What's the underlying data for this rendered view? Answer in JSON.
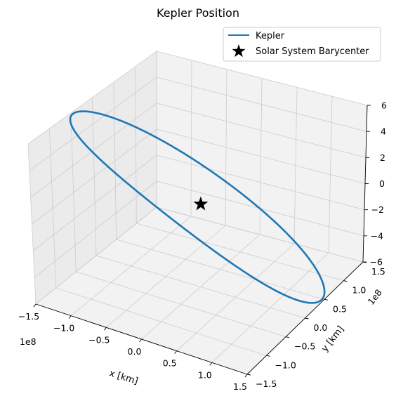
{
  "chart_data": {
    "type": "line",
    "projection": "3d",
    "title": "Kepler Position",
    "xlabel": "x [km]",
    "ylabel": "y [km]",
    "zlabel": "",
    "x_offset_label": "1e8",
    "y_offset_label": "1e8",
    "x_ticks": [
      "−1.5",
      "−1.0",
      "−0.5",
      "0.0",
      "0.5",
      "1.0",
      "1.5"
    ],
    "y_ticks": [
      "−1.5",
      "−1.0",
      "−0.5",
      "0.0",
      "0.5",
      "1.0",
      "1.5"
    ],
    "z_ticks": [
      "−6",
      "−4",
      "−2",
      "0",
      "2",
      "4",
      "6"
    ],
    "grid": true,
    "legend_position": "top-right",
    "series": [
      {
        "name": "Kepler",
        "kind": "orbit-line",
        "color": "#1f77b4",
        "orbit": {
          "center_x": 0.0,
          "center_y": 0.0,
          "semi_major": 1.56,
          "semi_minor": 1.44,
          "rotation_deg": 18,
          "z_amplitude": 6.3,
          "z_phase_deg": 200
        }
      },
      {
        "name": "Solar System Barycenter",
        "kind": "marker",
        "marker": "star",
        "color": "#000000",
        "x": 0.0,
        "y": 0.0,
        "z": 0.0
      }
    ]
  }
}
